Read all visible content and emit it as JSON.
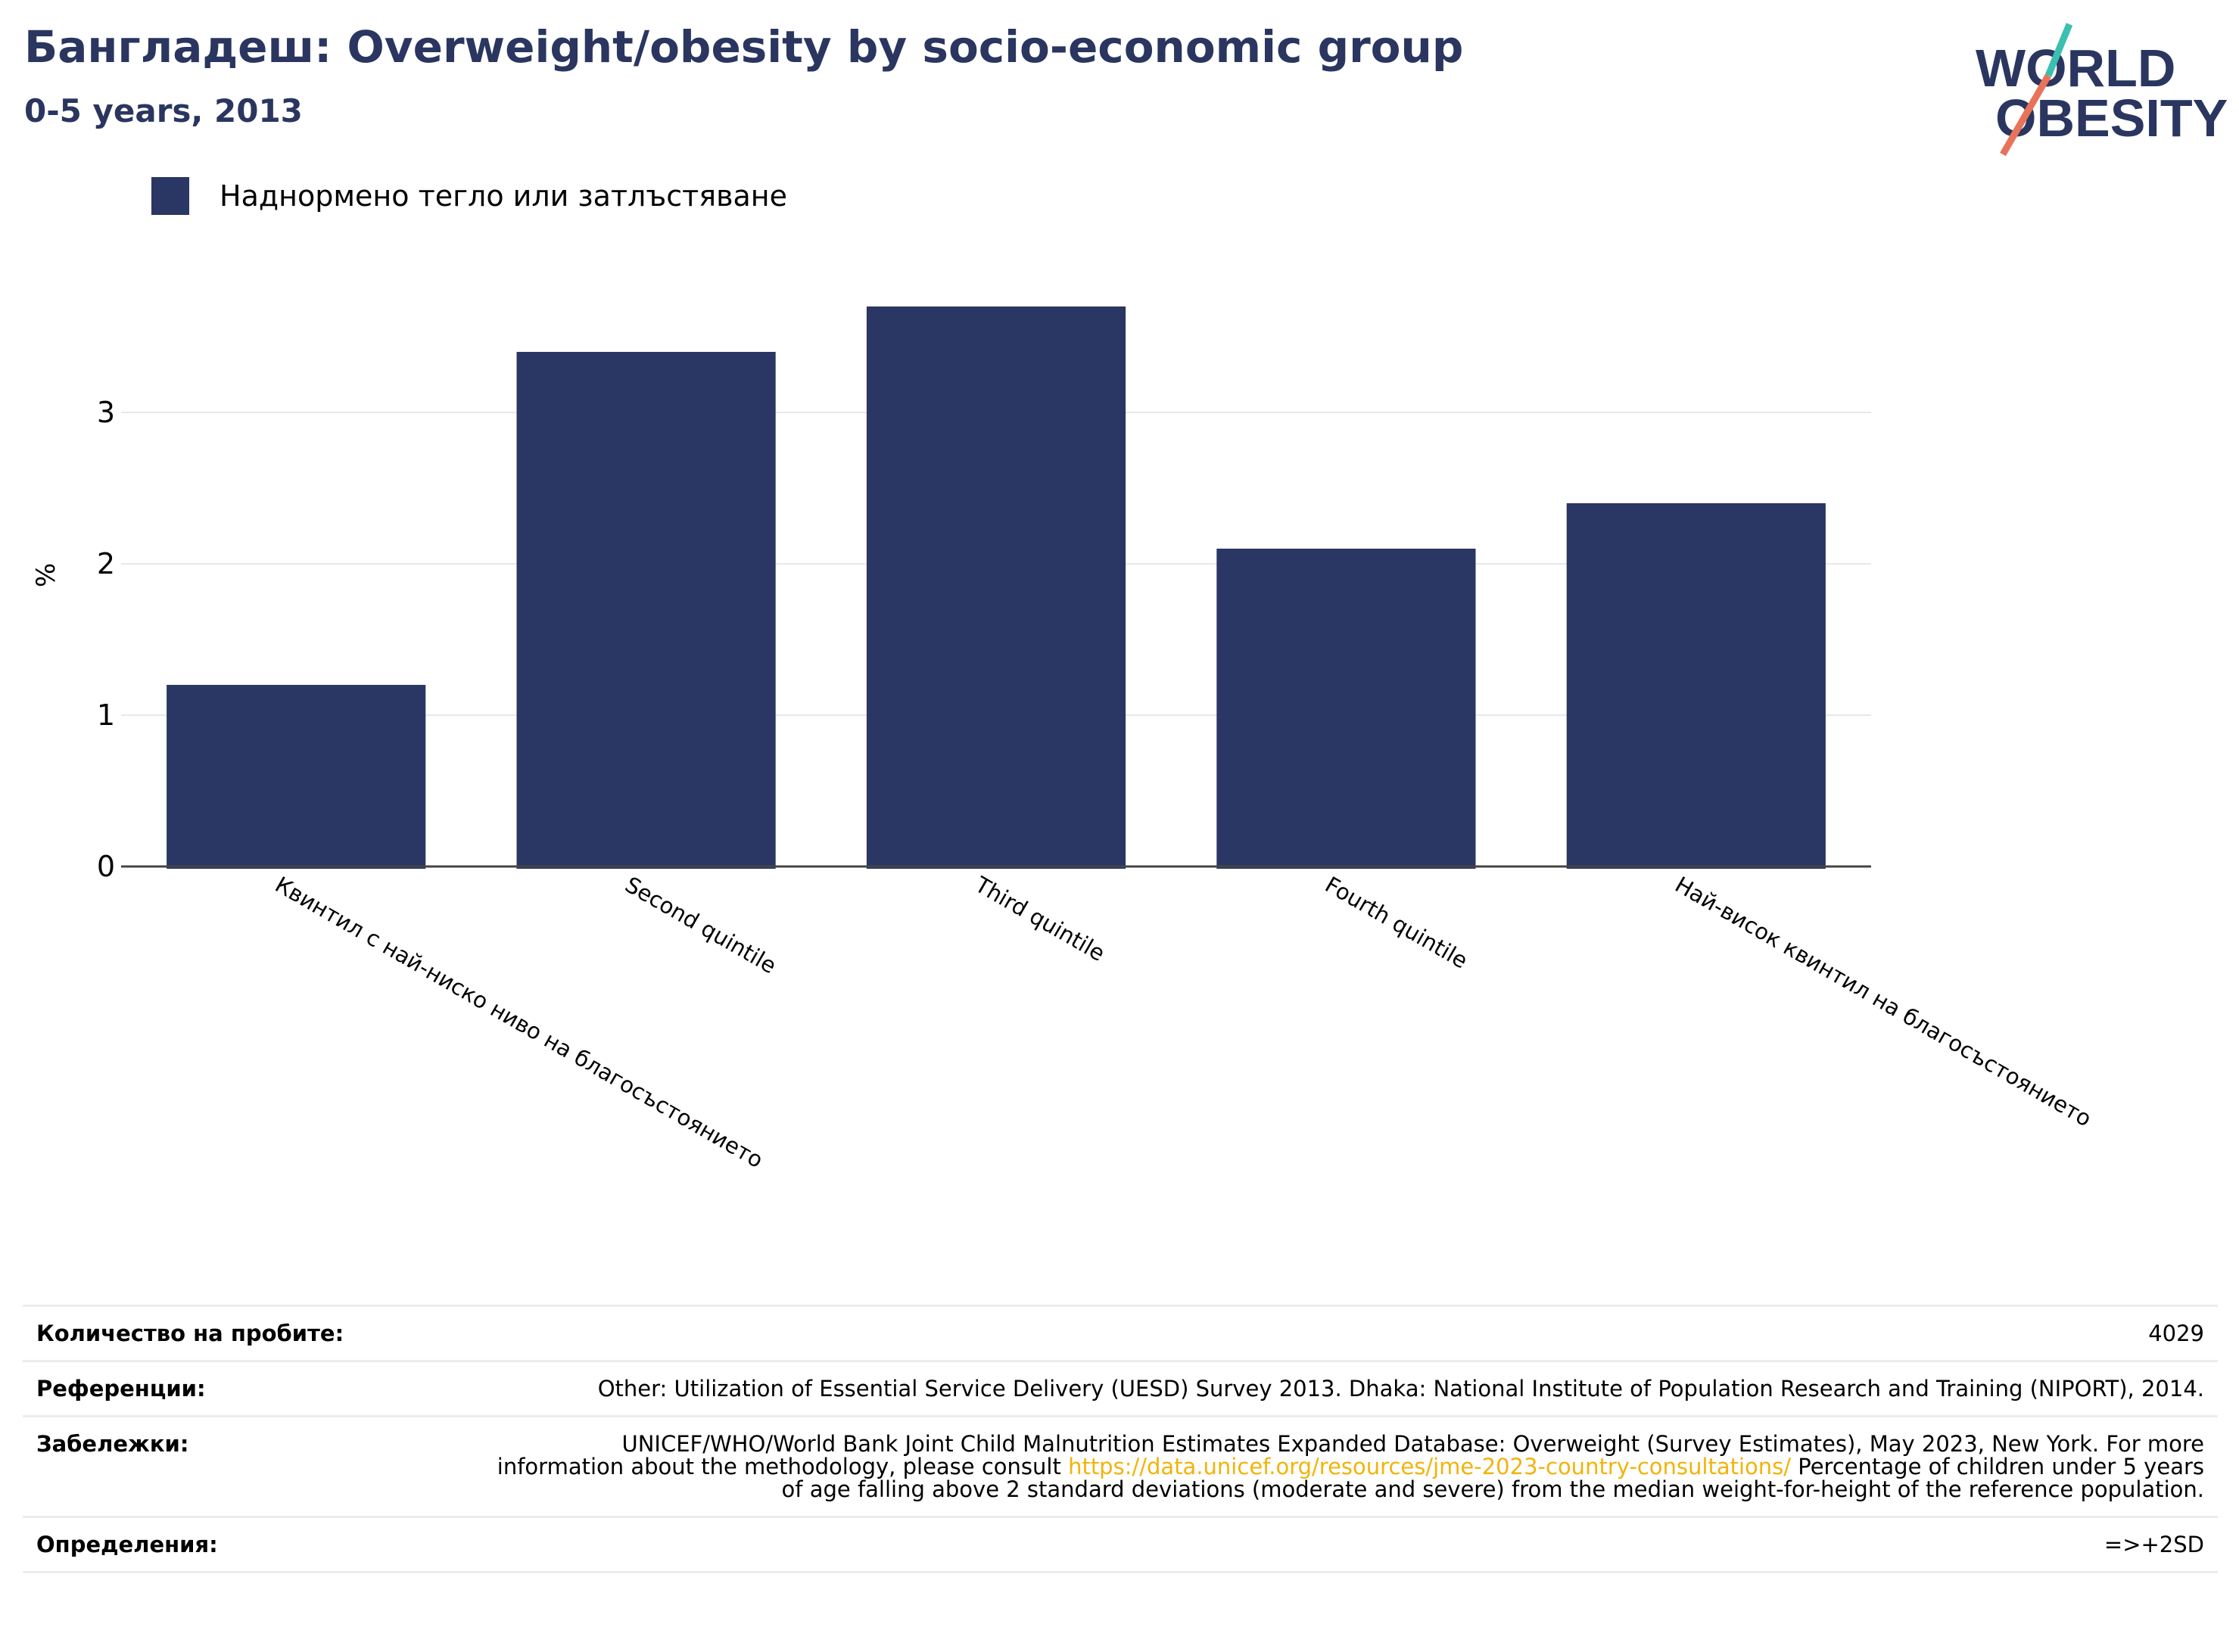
{
  "header": {
    "title": "Бангладеш: Overweight/obesity by socio-economic group",
    "subtitle": "0-5 years, 2013"
  },
  "logo": {
    "line1": "WORLD",
    "line2": "OBESITY"
  },
  "colors": {
    "bar": "#2a3663",
    "title": "#2a365f",
    "link": "#f2b30b",
    "logo_teal": "#3bbfb2",
    "logo_coral": "#e8735a"
  },
  "chart_data": {
    "type": "bar",
    "categories": [
      "Квинтил с най-ниско ниво на благосъстоянието",
      "Second quintile",
      "Third quintile",
      "Fourth quintile",
      "Най-висок квинтил на благосъстоянието"
    ],
    "series": [
      {
        "name": "Наднормено тегло или затлъстяване",
        "values": [
          1.2,
          3.4,
          3.7,
          2.1,
          2.4
        ]
      }
    ],
    "ylabel": "%",
    "ylim": [
      0,
      4
    ],
    "yticks": [
      0,
      1,
      2,
      3
    ],
    "grid": true,
    "legend": "top-left"
  },
  "notes": {
    "sample_label": "Количество на пробите:",
    "sample_value": "4029",
    "references_label": "Референции:",
    "references_value": "Other: Utilization of Essential Service Delivery (UESD) Survey 2013. Dhaka: National Institute of Population Research and Training (NIPORT), 2014.",
    "remarks_label": "Забележки:",
    "remarks_before": "UNICEF/WHO/World Bank Joint Child Malnutrition Estimates Expanded Database: Overweight (Survey Estimates), May 2023, New York. For more information about the methodology, please consult ",
    "remarks_link": "https://data.unicef.org/resources/jme-2023-country-consultations/",
    "remarks_after": " Percentage of children under 5 years of age falling above 2 standard deviations (moderate and severe) from the median weight-for-height of the reference population.",
    "definitions_label": "Определения:",
    "definitions_value": "=>+2SD"
  }
}
